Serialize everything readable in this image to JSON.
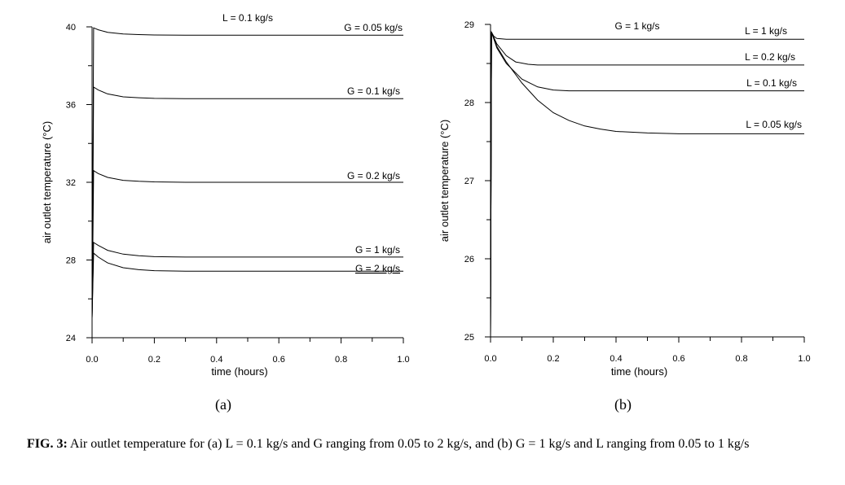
{
  "chart_data": [
    {
      "type": "line",
      "panel_label": "(a)",
      "header_label": "L = 0.1 kg/s",
      "xlabel": "time (hours)",
      "ylabel": "air outlet temperature (°C)",
      "xlim": [
        0,
        1.0
      ],
      "ylim": [
        24,
        40
      ],
      "xticks": [
        0.0,
        0.2,
        0.4,
        0.6,
        0.8,
        1.0
      ],
      "xtick_labels": [
        "0.0",
        "0.2",
        "0.4",
        "0.6",
        "0.8",
        "1.0"
      ],
      "yticks": [
        24,
        28,
        32,
        36,
        40
      ],
      "ytick_labels": [
        "24",
        "28",
        "32",
        "36",
        "40"
      ],
      "series": [
        {
          "name": "G = 0.05 kg/s",
          "x": [
            0,
            0.005,
            0.02,
            0.05,
            0.1,
            0.15,
            0.2,
            0.3,
            1.0
          ],
          "y": [
            25.0,
            39.95,
            39.85,
            39.72,
            39.63,
            39.6,
            39.58,
            39.57,
            39.57
          ]
        },
        {
          "name": "G = 0.1 kg/s",
          "x": [
            0,
            0.005,
            0.02,
            0.05,
            0.1,
            0.15,
            0.2,
            0.3,
            1.0
          ],
          "y": [
            25.0,
            36.9,
            36.75,
            36.55,
            36.4,
            36.35,
            36.32,
            36.3,
            36.3
          ]
        },
        {
          "name": "G = 0.2 kg/s",
          "x": [
            0,
            0.005,
            0.02,
            0.05,
            0.1,
            0.15,
            0.2,
            0.3,
            1.0
          ],
          "y": [
            25.0,
            32.6,
            32.45,
            32.25,
            32.1,
            32.05,
            32.02,
            32.0,
            32.0
          ]
        },
        {
          "name": "G = 1 kg/s",
          "x": [
            0,
            0.005,
            0.02,
            0.05,
            0.1,
            0.15,
            0.2,
            0.3,
            1.0
          ],
          "y": [
            25.0,
            28.9,
            28.75,
            28.5,
            28.3,
            28.22,
            28.17,
            28.15,
            28.15
          ]
        },
        {
          "name": "G = 2 kg/s",
          "x": [
            0,
            0.005,
            0.02,
            0.05,
            0.1,
            0.15,
            0.2,
            0.3,
            1.0
          ],
          "y": [
            25.0,
            28.35,
            28.15,
            27.85,
            27.6,
            27.5,
            27.45,
            27.42,
            27.42
          ]
        }
      ]
    },
    {
      "type": "line",
      "panel_label": "(b)",
      "header_label": "G = 1 kg/s",
      "xlabel": "time (hours)",
      "ylabel": "air outlet temperature (°C)",
      "xlim": [
        0,
        1.0
      ],
      "ylim": [
        25,
        29
      ],
      "xticks": [
        0.0,
        0.2,
        0.4,
        0.6,
        0.8,
        1.0
      ],
      "xtick_labels": [
        "0.0",
        "0.2",
        "0.4",
        "0.6",
        "0.8",
        "1.0"
      ],
      "yticks": [
        25,
        26,
        27,
        28,
        29
      ],
      "ytick_labels": [
        "25",
        "26",
        "27",
        "28",
        "29"
      ],
      "series": [
        {
          "name": "L = 1 kg/s",
          "x": [
            0,
            0.003,
            0.01,
            0.02,
            0.05,
            1.0
          ],
          "y": [
            25.0,
            28.9,
            28.85,
            28.82,
            28.81,
            28.81
          ]
        },
        {
          "name": "L = 0.2 kg/s",
          "x": [
            0,
            0.003,
            0.02,
            0.05,
            0.08,
            0.12,
            0.15,
            0.2,
            1.0
          ],
          "y": [
            25.0,
            28.9,
            28.75,
            28.6,
            28.52,
            28.49,
            28.48,
            28.48,
            28.48
          ]
        },
        {
          "name": "L = 0.1 kg/s",
          "x": [
            0,
            0.003,
            0.02,
            0.05,
            0.1,
            0.15,
            0.2,
            0.25,
            0.3,
            1.0
          ],
          "y": [
            25.0,
            28.9,
            28.7,
            28.5,
            28.3,
            28.2,
            28.16,
            28.15,
            28.15,
            28.15
          ]
        },
        {
          "name": "L = 0.05 kg/s",
          "x": [
            0,
            0.003,
            0.02,
            0.05,
            0.1,
            0.15,
            0.2,
            0.25,
            0.3,
            0.35,
            0.4,
            0.5,
            0.6,
            1.0
          ],
          "y": [
            25.0,
            28.9,
            28.72,
            28.52,
            28.25,
            28.03,
            27.87,
            27.77,
            27.7,
            27.66,
            27.63,
            27.61,
            27.6,
            27.6
          ]
        }
      ]
    }
  ],
  "caption": {
    "label": "FIG. 3:",
    "text": "Air outlet temperature for (a) L = 0.1 kg/s and G ranging from 0.05 to 2 kg/s, and (b) G = 1 kg/s and L ranging from 0.05 to 1 kg/s"
  }
}
